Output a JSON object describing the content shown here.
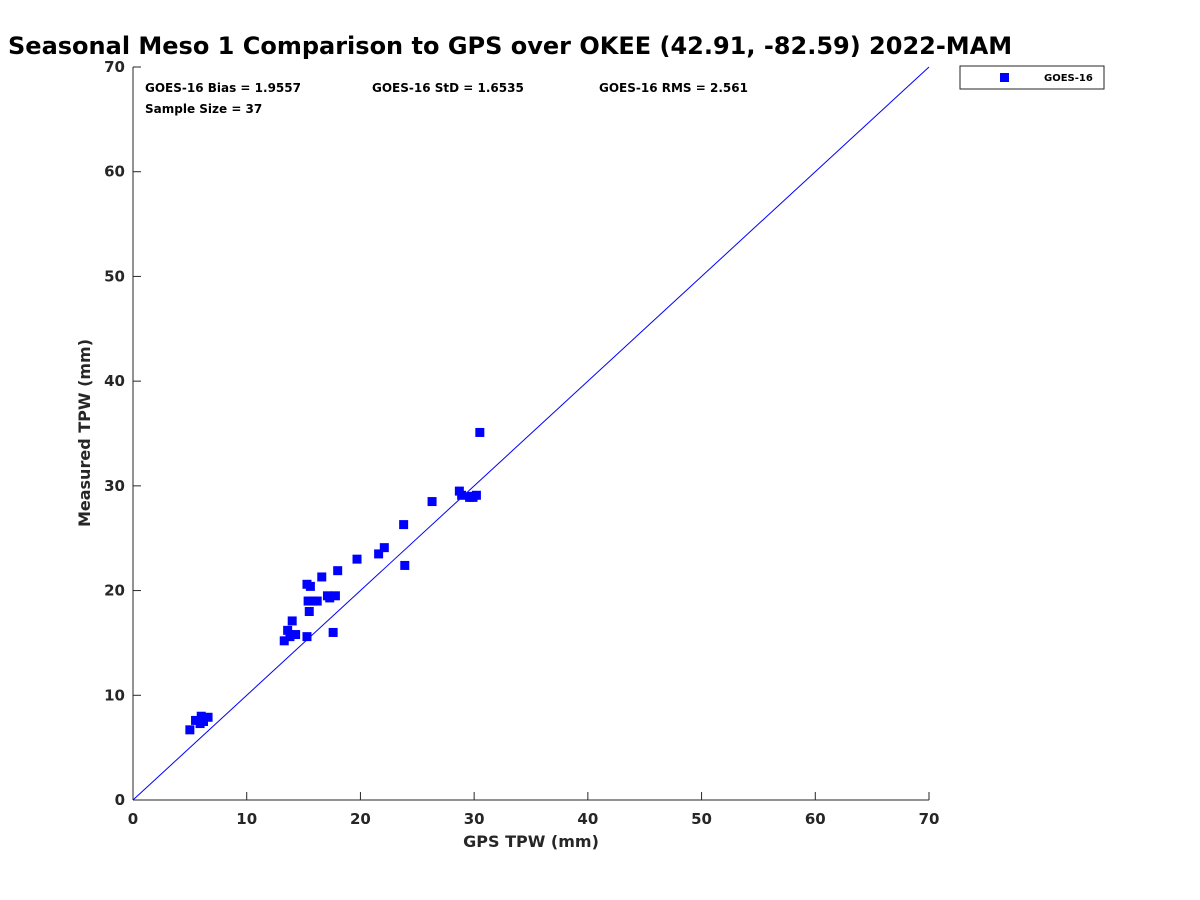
{
  "chart_data": {
    "type": "scatter",
    "title": "Seasonal Meso 1 Comparison to GPS over OKEE (42.91, -82.59) 2022-MAM",
    "xlabel": "GPS TPW (mm)",
    "ylabel": "Measured TPW (mm)",
    "xlim": [
      0,
      70
    ],
    "ylim": [
      0,
      70
    ],
    "xticks": [
      "0",
      "10",
      "20",
      "30",
      "40",
      "50",
      "60",
      "70"
    ],
    "yticks": [
      "0",
      "10",
      "20",
      "30",
      "40",
      "50",
      "60",
      "70"
    ],
    "grid": false,
    "legend_position": "outside-top-right",
    "stats": {
      "bias": "GOES-16 Bias = 1.9557",
      "std": "GOES-16 StD = 1.6535",
      "rms": "GOES-16 RMS = 2.561",
      "sample_size": "Sample Size = 37"
    },
    "reference_line": {
      "x": [
        0,
        70
      ],
      "y": [
        0,
        70
      ],
      "color": "#0000ff"
    },
    "series": [
      {
        "name": "GOES-16",
        "color": "#0000ff",
        "marker": "square",
        "points": [
          [
            5.0,
            6.7
          ],
          [
            5.5,
            7.6
          ],
          [
            5.9,
            7.3
          ],
          [
            6.0,
            8.0
          ],
          [
            6.2,
            7.5
          ],
          [
            6.6,
            7.9
          ],
          [
            13.3,
            15.2
          ],
          [
            13.6,
            16.2
          ],
          [
            13.8,
            15.6
          ],
          [
            14.0,
            17.1
          ],
          [
            14.3,
            15.8
          ],
          [
            15.3,
            15.6
          ],
          [
            15.3,
            20.6
          ],
          [
            15.4,
            19.0
          ],
          [
            15.5,
            18.0
          ],
          [
            15.6,
            20.4
          ],
          [
            15.8,
            19.0
          ],
          [
            16.2,
            19.0
          ],
          [
            16.6,
            21.3
          ],
          [
            17.1,
            19.5
          ],
          [
            17.3,
            19.3
          ],
          [
            17.6,
            16.0
          ],
          [
            17.8,
            19.5
          ],
          [
            18.0,
            21.9
          ],
          [
            19.7,
            23.0
          ],
          [
            21.6,
            23.5
          ],
          [
            22.1,
            24.1
          ],
          [
            23.8,
            26.3
          ],
          [
            23.9,
            22.4
          ],
          [
            26.3,
            28.5
          ],
          [
            28.7,
            29.5
          ],
          [
            28.9,
            29.1
          ],
          [
            29.6,
            28.9
          ],
          [
            29.9,
            28.9
          ],
          [
            30.2,
            29.1
          ],
          [
            30.5,
            35.1
          ],
          [
            29.8,
            29.0
          ]
        ]
      }
    ]
  }
}
